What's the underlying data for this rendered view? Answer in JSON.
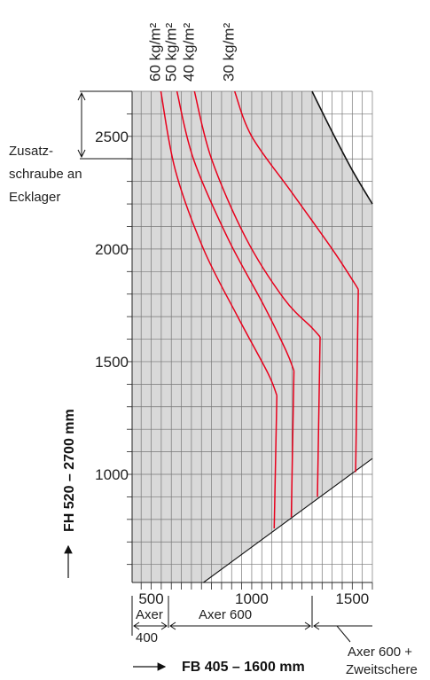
{
  "chart_data": {
    "type": "line",
    "xlabel": "FB 405 – 1600 mm",
    "ylabel": "FH 520 – 2700 mm",
    "xlim": [
      405,
      1600
    ],
    "ylim": [
      520,
      2700
    ],
    "x_ticks": [
      500,
      1000,
      1500
    ],
    "y_ticks": [
      1000,
      1500,
      2000,
      2500
    ],
    "grid": true,
    "colors": {
      "curves": "#e8001c",
      "shaded": "#d9d9d9",
      "grid": "#777777",
      "boundary": "#111111"
    },
    "series": [
      {
        "name": "60 kg/m²",
        "points": [
          [
            548,
            2700
          ],
          [
            620,
            2350
          ],
          [
            760,
            2000
          ],
          [
            930,
            1700
          ],
          [
            1080,
            1450
          ],
          [
            1125,
            1350
          ]
        ],
        "vertical": {
          "x": 1125,
          "y_from": 1350,
          "y_to": 760
        }
      },
      {
        "name": "50 kg/m²",
        "points": [
          [
            628,
            2700
          ],
          [
            710,
            2400
          ],
          [
            880,
            2050
          ],
          [
            1060,
            1750
          ],
          [
            1170,
            1550
          ],
          [
            1210,
            1460
          ]
        ],
        "vertical": {
          "x": 1210,
          "y_from": 1460,
          "y_to": 810
        }
      },
      {
        "name": "40 kg/m²",
        "points": [
          [
            715,
            2700
          ],
          [
            800,
            2400
          ],
          [
            970,
            2050
          ],
          [
            1160,
            1780
          ],
          [
            1300,
            1650
          ],
          [
            1340,
            1610
          ]
        ],
        "vertical": {
          "x": 1340,
          "y_from": 1610,
          "y_to": 900
        }
      },
      {
        "name": "30 kg/m²",
        "points": [
          [
            915,
            2700
          ],
          [
            1000,
            2500
          ],
          [
            1200,
            2250
          ],
          [
            1400,
            2000
          ],
          [
            1510,
            1850
          ],
          [
            1530,
            1820
          ]
        ],
        "vertical": {
          "x": 1530,
          "y_from": 1820,
          "y_to": 1010
        }
      }
    ],
    "boundary_top_right": [
      [
        1300,
        2700
      ],
      [
        1400,
        2520
      ],
      [
        1500,
        2350
      ],
      [
        1600,
        2200
      ]
    ],
    "boundary_bottom_right": [
      [
        760,
        520
      ],
      [
        1600,
        1070
      ]
    ],
    "annotations": {
      "zusatz": [
        "Zusatz-",
        "schraube an",
        "Ecklager"
      ],
      "axer_400_top": "Axer",
      "axer_400_bottom": "400",
      "axer_600": "Axer 600",
      "axer_600_plus": "Axer 600 +",
      "zweitschere": "Zweitschere"
    }
  }
}
